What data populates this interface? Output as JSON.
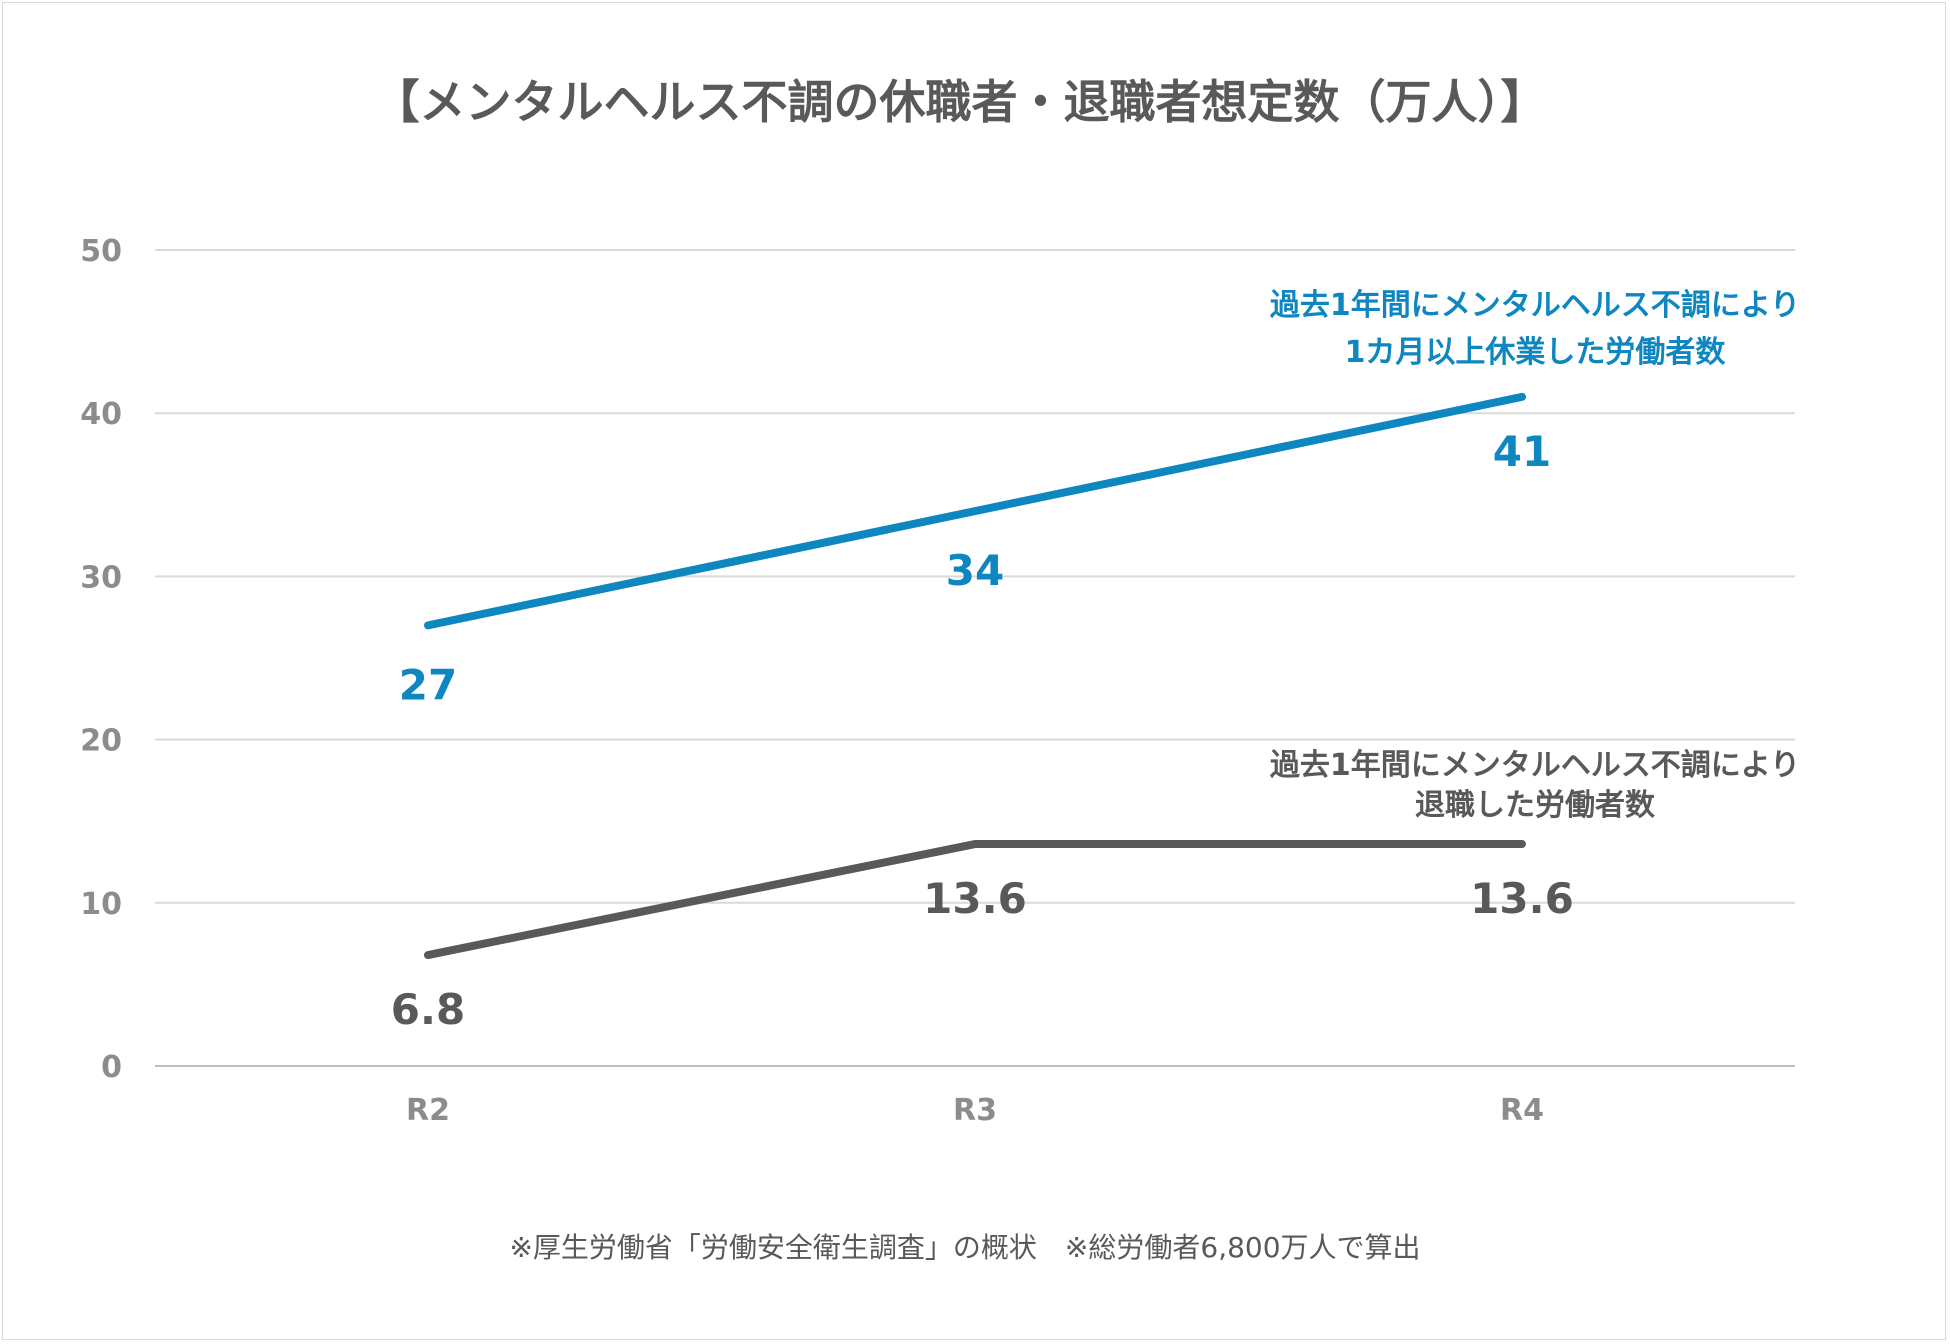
{
  "chart_data": {
    "type": "line",
    "title": "【メンタルヘルス不調の休職者・退職者想定数（万人）】",
    "categories": [
      "R2",
      "R3",
      "R4"
    ],
    "ylim": [
      0,
      50
    ],
    "yticks": [
      0,
      10,
      20,
      30,
      40,
      50
    ],
    "grid": true,
    "series": [
      {
        "name": "過去1年間にメンタルヘルス不調により1カ月以上休業した労働者数",
        "annotation_lines": [
          "過去1年間にメンタルヘルス不調により",
          "1カ月以上休業した労働者数"
        ],
        "values": [
          27,
          34,
          41
        ],
        "labels": [
          "27",
          "34",
          "41"
        ],
        "color": "#0e86c0"
      },
      {
        "name": "過去1年間にメンタルヘルス不調により退職した労働者数",
        "annotation_lines": [
          "過去1年間にメンタルヘルス不調により",
          "退職した労働者数"
        ],
        "values": [
          6.8,
          13.6,
          13.6
        ],
        "labels": [
          "6.8",
          "13.6",
          "13.6"
        ],
        "color": "#595959"
      }
    ],
    "footnote": "※厚生労働省「労働安全衛生調査」の概状　※総労働者6,800万人で算出"
  }
}
